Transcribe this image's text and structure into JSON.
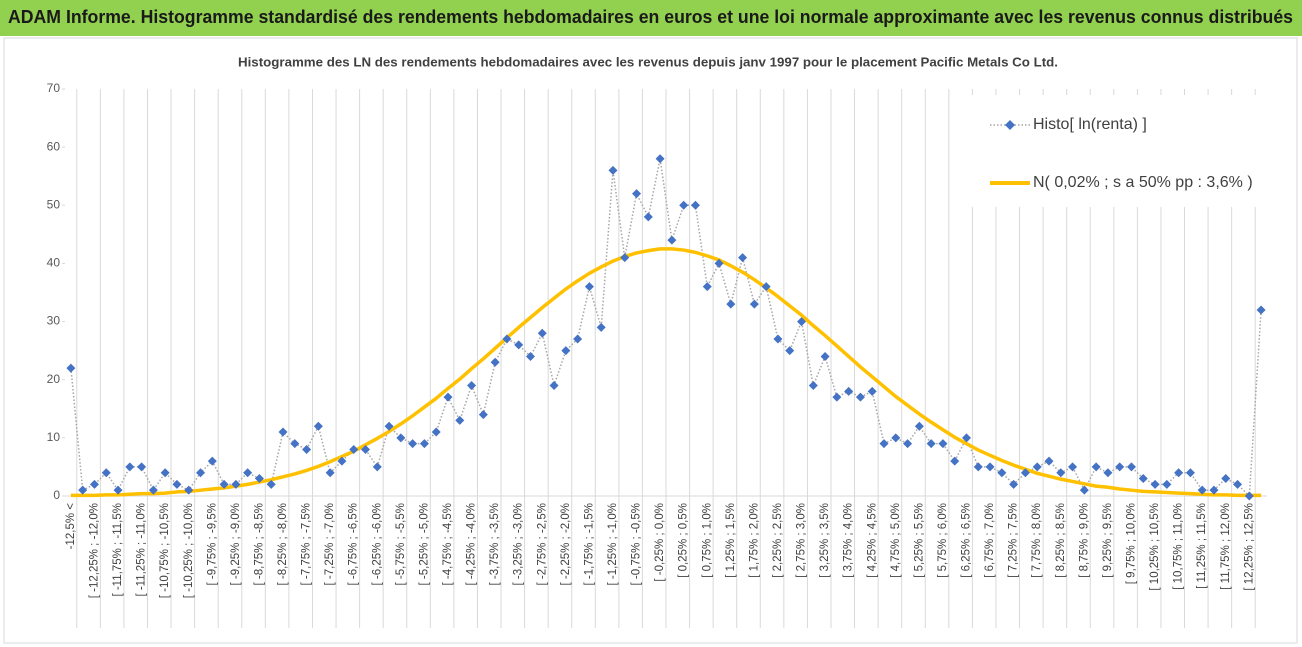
{
  "chart_data": {
    "type": "line",
    "title": "ADAM Informe. Histogramme standardisé des rendements hebdomadaires en euros et une loi normale approximante avec les revenus connus distribués",
    "subtitle": "Histogramme des LN des rendements hebdomadaires avec les revenus depuis janv 1997 pour le placement Pacific Metals Co Ltd.",
    "categories": [
      "-12,5% <",
      null,
      "[ -12,25% ; -12,0%",
      null,
      "[ -11,75% ; -11,5%",
      null,
      "[ -11,25% ; -11,0%",
      null,
      "[ -10,75% ; -10,5%",
      null,
      "[ -10,25% ; -10,0%",
      null,
      "[ -9,75% ; -9,5%",
      null,
      "[ -9,25% ; -9,0%",
      null,
      "[ -8,75% ; -8,5%",
      null,
      "[ -8,25% ; -8,0%",
      null,
      "[ -7,75% ; -7,5%",
      null,
      "[ -7,25% ; -7,0%",
      null,
      "[ -6,75% ; -6,5%",
      null,
      "[ -6,25% ; -6,0%",
      null,
      "[ -5,75% ; -5,5%",
      null,
      "[ -5,25% ; -5,0%",
      null,
      "[ -4,75% ; -4,5%",
      null,
      "[ -4,25% ; -4,0%",
      null,
      "[ -3,75% ; -3,5%",
      null,
      "[ -3,25% ; -3,0%",
      null,
      "[ -2,75% ; -2,5%",
      null,
      "[ -2,25% ; -2,0%",
      null,
      "[ -1,75% ; -1,5%",
      null,
      "[ -1,25% ; -1,0%",
      null,
      "[ -0,75% ; -0,5%",
      null,
      "[ -0,25% ; 0,0%",
      null,
      "[ 0,25% ; 0,5%",
      null,
      "[ 0,75% ; 1,0%",
      null,
      "[ 1,25% ; 1,5%",
      null,
      "[ 1,75% ; 2,0%",
      null,
      "[ 2,25% ; 2,5%",
      null,
      "[ 2,75% ; 3,0%",
      null,
      "[ 3,25% ; 3,5%",
      null,
      "[ 3,75% ; 4,0%",
      null,
      "[ 4,25% ; 4,5%",
      null,
      "[ 4,75% ; 5,0%",
      null,
      "[ 5,25% ; 5,5%",
      null,
      "[ 5,75% ; 6,0%",
      null,
      "[ 6,25% ; 6,5%",
      null,
      "[ 6,75% ; 7,0%",
      null,
      "[ 7,25% ; 7,5%",
      null,
      "[ 7,75% ; 8,0%",
      null,
      "[ 8,25% ; 8,5%",
      null,
      "[ 8,75% ; 9,0%",
      null,
      "[ 9,25% ; 9,5%",
      null,
      "[ 9,75% ; 10,0%",
      null,
      "[ 10,25% ; 10,5%",
      null,
      "[ 10,75% ; 11,0%",
      null,
      "[ 11,25% ; 11,5%",
      null,
      "[ 11,75% ; 12,0%",
      null,
      "[ 12,25% ; 12,5%",
      null
    ],
    "series": [
      {
        "name": "Histo[ ln(renta) ]",
        "color": "#4472c4",
        "line_color": "#a6a6a6",
        "marker": "diamond",
        "values": [
          22,
          1,
          2,
          4,
          1,
          5,
          5,
          1,
          4,
          2,
          1,
          4,
          6,
          2,
          2,
          4,
          3,
          2,
          11,
          9,
          8,
          12,
          4,
          6,
          8,
          8,
          5,
          12,
          10,
          9,
          9,
          11,
          17,
          13,
          19,
          14,
          23,
          27,
          26,
          24,
          28,
          19,
          25,
          27,
          36,
          29,
          56,
          41,
          52,
          48,
          58,
          44,
          50,
          50,
          36,
          40,
          33,
          41,
          33,
          36,
          27,
          25,
          30,
          19,
          24,
          17,
          18,
          17,
          18,
          9,
          10,
          9,
          12,
          9,
          9,
          6,
          10,
          5,
          5,
          4,
          2,
          4,
          5,
          6,
          4,
          5,
          1,
          5,
          4,
          5,
          5,
          3,
          2,
          2,
          4,
          4,
          1,
          1,
          3,
          2,
          0,
          32
        ]
      },
      {
        "name": "N( 0,02% ; s a 50% pp : 3,6% )",
        "color": "#ffc000",
        "values": [
          0.1,
          0.1,
          0.1,
          0.2,
          0.2,
          0.3,
          0.4,
          0.4,
          0.5,
          0.7,
          0.8,
          1.0,
          1.2,
          1.4,
          1.7,
          2.0,
          2.4,
          2.8,
          3.3,
          3.8,
          4.4,
          5.1,
          5.9,
          6.8,
          7.7,
          8.8,
          9.9,
          11.1,
          12.4,
          13.8,
          15.3,
          16.8,
          18.5,
          20.1,
          21.9,
          23.6,
          25.4,
          27.2,
          29.0,
          30.7,
          32.4,
          34.0,
          35.6,
          37.0,
          38.3,
          39.4,
          40.4,
          41.2,
          41.8,
          42.2,
          42.5,
          42.5,
          42.3,
          41.9,
          41.3,
          40.6,
          39.6,
          38.5,
          37.2,
          35.8,
          34.3,
          32.7,
          31.1,
          29.3,
          27.6,
          25.8,
          24.0,
          22.2,
          20.5,
          18.8,
          17.1,
          15.6,
          14.1,
          12.7,
          11.4,
          10.1,
          9.0,
          7.9,
          7.0,
          6.1,
          5.3,
          4.6,
          3.9,
          3.4,
          2.9,
          2.5,
          2.1,
          1.7,
          1.5,
          1.2,
          1.0,
          0.8,
          0.7,
          0.6,
          0.5,
          0.4,
          0.3,
          0.2,
          0.2,
          0.1,
          0.1,
          0.1
        ]
      }
    ],
    "ylim": [
      0,
      70
    ],
    "yticks": [
      0,
      10,
      20,
      30,
      40,
      50,
      60,
      70
    ],
    "legend": "top-right"
  }
}
